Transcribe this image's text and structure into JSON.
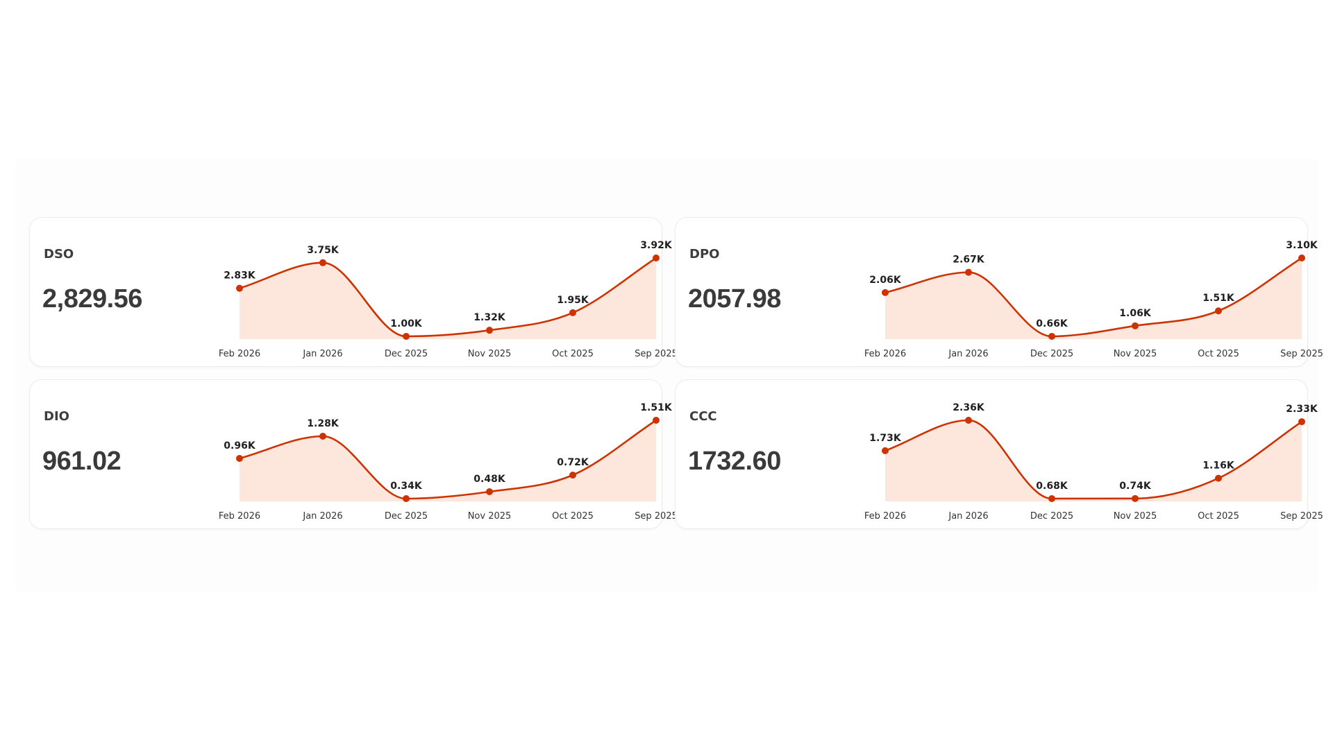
{
  "cards": [
    {
      "name": "DSO",
      "value": "2,829.56"
    },
    {
      "name": "DPO",
      "value": "2057.98"
    },
    {
      "name": "DIO",
      "value": "961.02"
    },
    {
      "name": "CCC",
      "value": "1732.60"
    }
  ],
  "colors": {
    "line": "#cc3300",
    "fill": "#fde6dc",
    "marker": "#cc3300"
  },
  "chart_data": [
    {
      "type": "area",
      "title": "DSO",
      "categories": [
        "Feb 2026",
        "Jan 2026",
        "Dec 2025",
        "Nov 2025",
        "Oct 2025",
        "Sep 2025"
      ],
      "values": [
        2830,
        3750,
        1000,
        1320,
        1950,
        3920
      ],
      "data_labels": [
        "2.83K",
        "3.75K",
        "1.00K",
        "1.32K",
        "1.95K",
        "3.92K"
      ],
      "grid": false,
      "smooth": true,
      "markers": true
    },
    {
      "type": "area",
      "title": "DPO",
      "categories": [
        "Feb 2026",
        "Jan 2026",
        "Dec 2025",
        "Nov 2025",
        "Oct 2025",
        "Sep 2025"
      ],
      "values": [
        2060,
        2670,
        660,
        1060,
        1510,
        3100
      ],
      "data_labels": [
        "2.06K",
        "2.67K",
        "0.66K",
        "1.06K",
        "1.51K",
        "3.10K"
      ],
      "grid": false,
      "smooth": true,
      "markers": true
    },
    {
      "type": "area",
      "title": "DIO",
      "categories": [
        "Feb 2026",
        "Jan 2026",
        "Dec 2025",
        "Nov 2025",
        "Oct 2025",
        "Sep 2025"
      ],
      "values": [
        960,
        1280,
        340,
        480,
        720,
        1510
      ],
      "data_labels": [
        "0.96K",
        "1.28K",
        "0.34K",
        "0.48K",
        "0.72K",
        "1.51K"
      ],
      "grid": false,
      "smooth": true,
      "markers": true
    },
    {
      "type": "area",
      "title": "CCC",
      "categories": [
        "Feb 2026",
        "Jan 2026",
        "Dec 2025",
        "Nov 2025",
        "Oct 2025",
        "Sep 2025"
      ],
      "values": [
        1730,
        2360,
        680,
        740,
        1160,
        2330
      ],
      "data_labels": [
        "1.73K",
        "2.36K",
        "0.68K",
        "0.74K",
        "1.16K",
        "2.33K"
      ],
      "grid": false,
      "smooth": true,
      "markers": true
    }
  ]
}
